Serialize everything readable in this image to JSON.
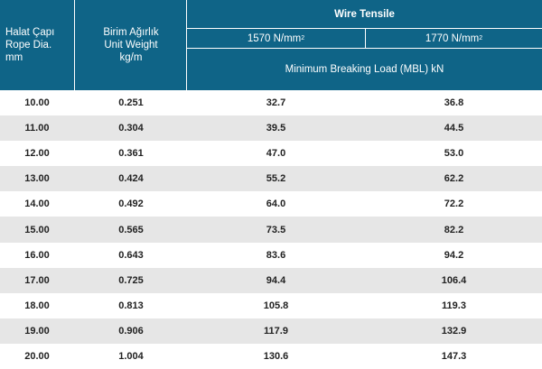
{
  "header": {
    "col1": [
      "Halat Çapı",
      "Rope Dia.",
      "mm"
    ],
    "col2": [
      "Birim Ağırlık",
      "Unit Weight",
      "kg/m"
    ],
    "wire_tensile": "Wire Tensile",
    "tensile_1": "1570 N/mm",
    "tensile_2": "1770 N/mm",
    "unit_sup": "2",
    "mbl": "Minimum Breaking Load (MBL) kN"
  },
  "rows": [
    [
      "10.00",
      "0.251",
      "32.7",
      "36.8"
    ],
    [
      "11.00",
      "0.304",
      "39.5",
      "44.5"
    ],
    [
      "12.00",
      "0.361",
      "47.0",
      "53.0"
    ],
    [
      "13.00",
      "0.424",
      "55.2",
      "62.2"
    ],
    [
      "14.00",
      "0.492",
      "64.0",
      "72.2"
    ],
    [
      "15.00",
      "0.565",
      "73.5",
      "82.2"
    ],
    [
      "16.00",
      "0.643",
      "83.6",
      "94.2"
    ],
    [
      "17.00",
      "0.725",
      "94.4",
      "106.4"
    ],
    [
      "18.00",
      "0.813",
      "105.8",
      "119.3"
    ],
    [
      "19.00",
      "0.906",
      "117.9",
      "132.9"
    ],
    [
      "20.00",
      "1.004",
      "130.6",
      "147.3"
    ]
  ],
  "colors": {
    "header_bg": "#0f6487",
    "stripe": "#e6e6e6"
  }
}
